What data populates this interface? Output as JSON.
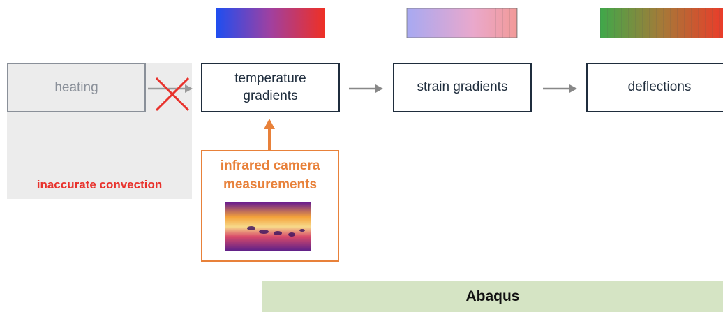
{
  "nodes": [
    {
      "label": "heating"
    },
    {
      "label": "temperature gradients"
    },
    {
      "label": "strain gradients"
    },
    {
      "label": "deflections"
    }
  ],
  "note": "inaccurate convection",
  "measurement": "infrared camera measurements",
  "footer": "Abaqus"
}
